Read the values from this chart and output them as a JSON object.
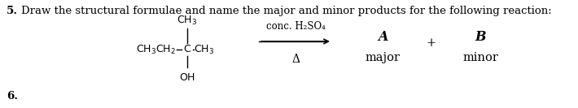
{
  "title_num": "5.",
  "title_text": "Draw the structural formulae and name the major and minor products for the following reaction:",
  "question_num_bottom": "6.",
  "reagent_line1": "conc. H₂SO₄",
  "reagent_line2": "Δ",
  "major_label": "A",
  "major_sublabel": "major",
  "plus_sign": "+",
  "minor_label": "B",
  "minor_sublabel": "minor",
  "bg_color": "#ffffff",
  "text_color": "#000000",
  "font_size_title": 9.5,
  "font_size_chem": 9.0,
  "font_size_label": 10.5
}
